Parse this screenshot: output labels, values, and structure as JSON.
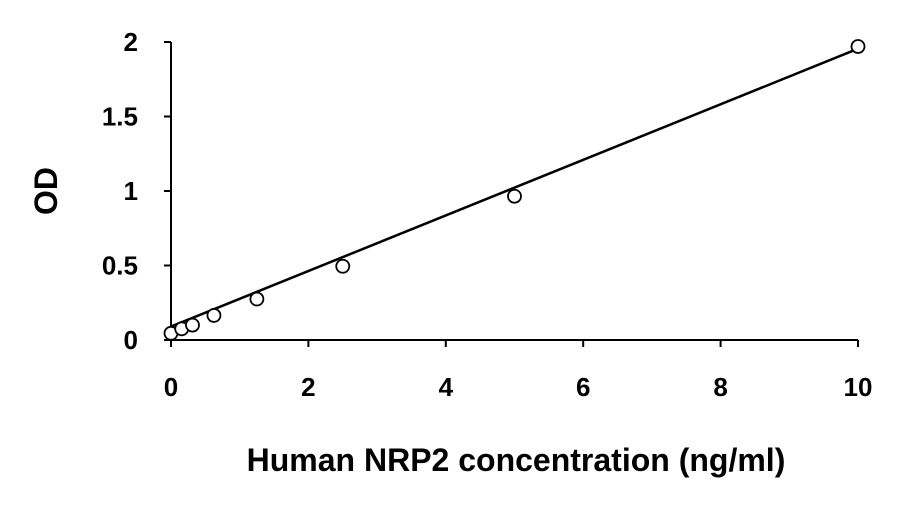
{
  "chart_data": {
    "type": "scatter",
    "title": "",
    "xlabel": "Human NRP2 concentration (ng/ml)",
    "ylabel": "OD",
    "xlim": [
      0,
      10
    ],
    "ylim": [
      0,
      2
    ],
    "xticks": [
      "0",
      "2",
      "4",
      "6",
      "8",
      "10"
    ],
    "yticks": [
      "0",
      "0.5",
      "1",
      "1.5",
      "2"
    ],
    "grid": false,
    "legend": "none",
    "marker": "open-circle",
    "series": [
      {
        "x": [
          0,
          0.156,
          0.313,
          0.625,
          1.25,
          2.5,
          5,
          10
        ],
        "y": [
          0.045,
          0.075,
          0.1,
          0.165,
          0.275,
          0.495,
          0.965,
          1.97
        ]
      }
    ],
    "trendline": {
      "type": "linear",
      "from": [
        0,
        0.09
      ],
      "to": [
        10,
        1.955
      ]
    },
    "colors": {
      "axis": "#000000",
      "marker_stroke": "#000000",
      "marker_fill": "#ffffff",
      "line": "#000000"
    }
  }
}
